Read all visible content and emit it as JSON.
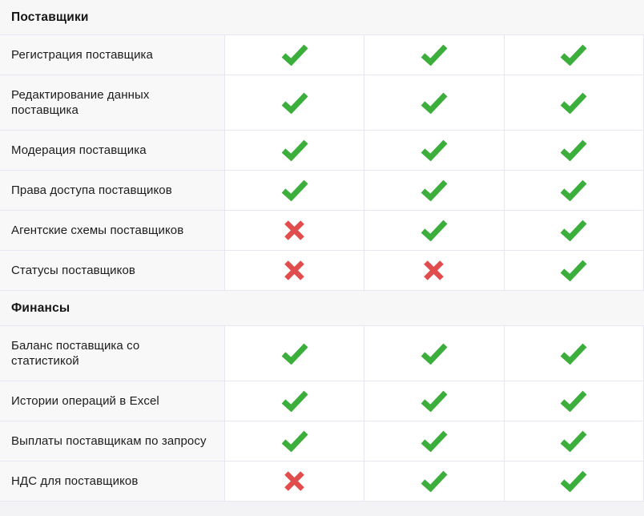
{
  "page": {
    "background": "#f3f3f5"
  },
  "colors": {
    "check_green": "#3CAE3C",
    "cross_red": "#E14D4D",
    "border": "#e8e7f1",
    "label_column_bg": "#f8f8f8",
    "section_row_bg": "#f7f7f8",
    "value_cell_bg": "#ffffff",
    "text": "#1c1c1e"
  },
  "icons": {
    "check": "check-icon",
    "cross": "cross-icon"
  },
  "table": {
    "value_columns": 3,
    "rows": [
      {
        "type": "section",
        "label": "Поставщики"
      },
      {
        "type": "feature",
        "label": "Регистрация поставщика",
        "values": [
          "check",
          "check",
          "check"
        ]
      },
      {
        "type": "feature",
        "label": "Редактирование данных поставщика",
        "values": [
          "check",
          "check",
          "check"
        ]
      },
      {
        "type": "feature",
        "label": "Модерация поставщика",
        "values": [
          "check",
          "check",
          "check"
        ]
      },
      {
        "type": "feature",
        "label": "Права доступа поставщиков",
        "values": [
          "check",
          "check",
          "check"
        ]
      },
      {
        "type": "feature",
        "label": "Агентские схемы поставщиков",
        "values": [
          "cross",
          "check",
          "check"
        ]
      },
      {
        "type": "feature",
        "label": "Статусы поставщиков",
        "values": [
          "cross",
          "cross",
          "check"
        ]
      },
      {
        "type": "section",
        "label": "Финансы"
      },
      {
        "type": "feature",
        "label": "Баланс поставщика со статистикой",
        "values": [
          "check",
          "check",
          "check"
        ]
      },
      {
        "type": "feature",
        "label": "Истории операций в Excel",
        "values": [
          "check",
          "check",
          "check"
        ]
      },
      {
        "type": "feature",
        "label": "Выплаты поставщикам по запросу",
        "values": [
          "check",
          "check",
          "check"
        ]
      },
      {
        "type": "feature",
        "label": "НДС для поставщиков",
        "values": [
          "cross",
          "check",
          "check"
        ]
      }
    ]
  }
}
